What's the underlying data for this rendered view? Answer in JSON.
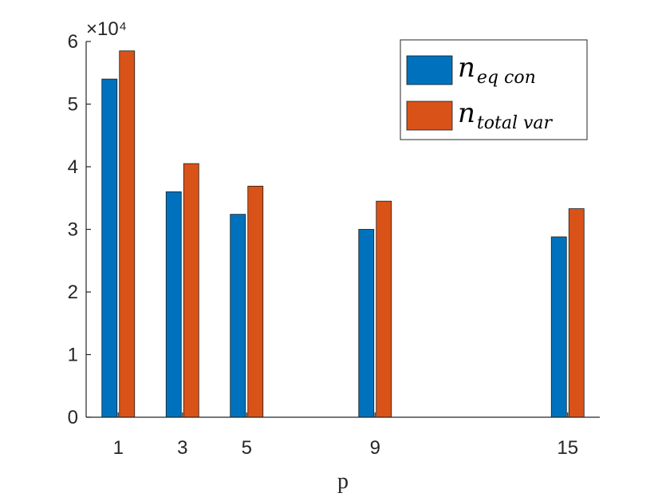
{
  "chart_data": {
    "type": "bar",
    "categories": [
      "1",
      "3",
      "5",
      "9",
      "15"
    ],
    "x": [
      1,
      3,
      5,
      9,
      15
    ],
    "series": [
      {
        "name": "n_eq con",
        "color": "#0072BD",
        "values": [
          54000,
          36000,
          32400,
          30000,
          28800
        ]
      },
      {
        "name": "n_total var",
        "color": "#D95319",
        "values": [
          58500,
          40500,
          36900,
          34500,
          33300
        ]
      }
    ],
    "xlabel": "p",
    "ylabel": "",
    "ylim": [
      0,
      60000
    ],
    "xlim": [
      0,
      16
    ],
    "yticks": [
      0,
      1,
      2,
      3,
      4,
      5,
      6
    ],
    "y_exponent": "×10⁴",
    "grid": false,
    "legend_position": "top-right",
    "legend": [
      {
        "base": "n",
        "sub": "eq con"
      },
      {
        "base": "n",
        "sub": "total var"
      }
    ]
  }
}
